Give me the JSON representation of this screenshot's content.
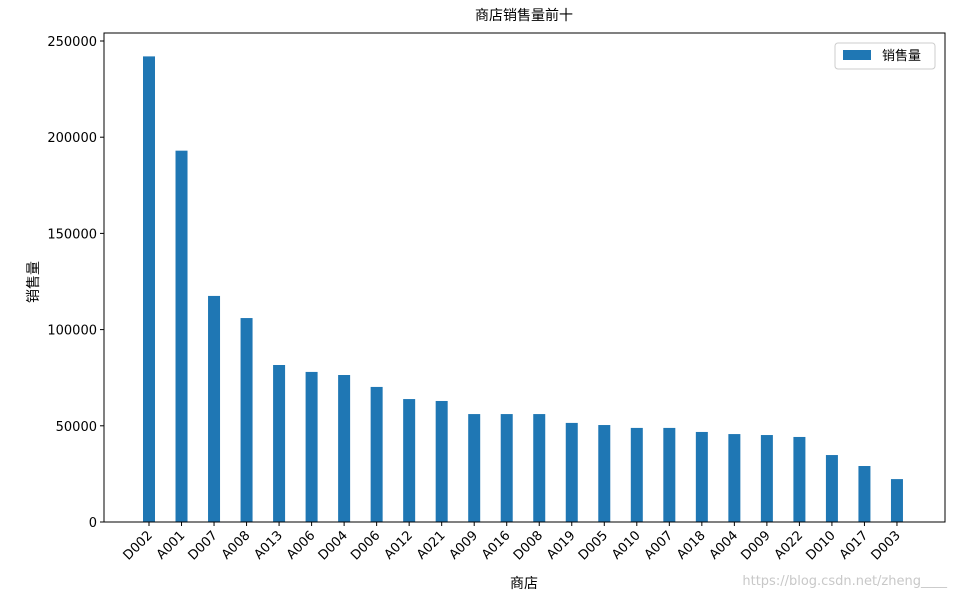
{
  "chart_data": {
    "type": "bar",
    "title": "商店销售量前十",
    "xlabel": "商店",
    "ylabel": "销售量",
    "categories": [
      "D002",
      "A001",
      "D007",
      "A008",
      "A013",
      "A006",
      "D004",
      "D006",
      "A012",
      "A021",
      "A009",
      "A016",
      "D008",
      "A019",
      "D005",
      "A010",
      "A007",
      "A018",
      "A004",
      "D009",
      "A022",
      "D010",
      "A017",
      "D003"
    ],
    "series": [
      {
        "name": "销售量",
        "color": "#1f77b4",
        "values": [
          242000,
          193000,
          117500,
          106000,
          81600,
          78000,
          76400,
          70200,
          63900,
          62900,
          56100,
          56100,
          56100,
          51500,
          50400,
          48900,
          48900,
          46800,
          45700,
          45200,
          44200,
          34800,
          29100,
          22300
        ]
      }
    ],
    "ylim": [
      0,
      250000
    ],
    "yticks": [
      0,
      50000,
      100000,
      150000,
      200000,
      250000
    ],
    "grid": false,
    "legend": "upper right",
    "watermark": "https://blog.csdn.net/zheng____"
  }
}
